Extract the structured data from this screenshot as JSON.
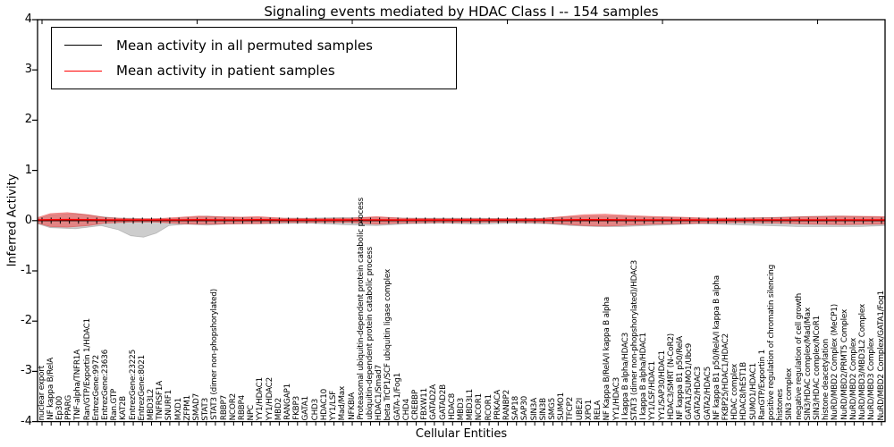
{
  "title": "Signaling events mediated by HDAC Class I -- 154 samples",
  "axes": {
    "xlabel": "Cellular Entities",
    "ylabel": "Inferred Activity",
    "yticks": [
      "4",
      "3",
      "2",
      "1",
      "0",
      "-1",
      "-2",
      "-3",
      "-4"
    ],
    "ylim": [
      -4,
      4
    ]
  },
  "legend": {
    "items": [
      {
        "label": "Mean activity in all permuted samples",
        "color": "#000000"
      },
      {
        "label": "Mean activity in patient samples",
        "color": "#ff0000"
      }
    ]
  },
  "colors": {
    "permuted_line": "#000000",
    "patient_line": "#ff0000",
    "permuted_fill": "rgba(130,130,130,0.40)",
    "patient_fill": "rgba(255,45,45,0.45)",
    "frame": "#000000"
  },
  "chart_data": {
    "type": "line",
    "title": "Signaling events mediated by HDAC Class I -- 154 samples",
    "xlabel": "Cellular Entities",
    "ylabel": "Inferred Activity",
    "ylim": [
      -4,
      4
    ],
    "grid": false,
    "legend_position": "upper left",
    "categories": [
      "nuclear export",
      "NF kappa B/RelA",
      "Ep300",
      "PPARG",
      "TNF-alpha/TNFR1A",
      "Ran/GTP/Exportin 1/HDAC1",
      "EntrezGene:9972",
      "EntrezGene:23636",
      "Ran.GTP",
      "KAT2B",
      "EntrezGene:23225",
      "EntrezGene:8021",
      "MBD3L2",
      "TNFRSF1A",
      "SNURF1",
      "MXD1",
      "ZFPM1",
      "SMAD7",
      "STAT3",
      "STAT3 (dimer non-phopshorylated)",
      "RBBP7",
      "NCOR2",
      "RBBP4",
      "NPC",
      "YY1/HDAC1",
      "YY1/HDAC2",
      "MBD2",
      "RANGAP1",
      "FKBP3",
      "GATA1",
      "CHD3",
      "HDAC10",
      "YY1/LSF",
      "Mad/Max",
      "NFKBIA",
      "Proteasomal ubiquitin-dependent protein catabolic process",
      "ubiquitin-dependent protein catabolic process",
      "HDAC1/Smad7",
      "beta TrCP1/SCF ubiquitin ligase complex",
      "GATA-1/Fog1",
      "CHD4",
      "CREBBP",
      "FBXW11",
      "GATAD2A",
      "GATAD2B",
      "HDAC8",
      "MBD3",
      "MBD3L1",
      "NCOR1",
      "RCOR1",
      "PRKACA",
      "RANBP2",
      "SAP18",
      "SAP30",
      "SIN3A",
      "SIN3B",
      "SMG5",
      "SUMO1",
      "TFCP2",
      "UBE2I",
      "XPO1",
      "RELA",
      "NF Kappa B/RelA/I kappa B alpha",
      "YY1/HDAC3",
      "I kappa B alpha/HDAC3",
      "STAT3 (dimer non-phopshorylated)/HDAC3",
      "I kappa B alpha/HDAC1",
      "YY1/LSF/HDAC1",
      "YY1/SAP30/HDAC1",
      "HDAC3/SMRT (N-CoR2)",
      "NF kappa B1 p50/RelA",
      "GATA1/SUMO1/Ubc9",
      "GATA2/HDAC3",
      "GATA2/HDAC5",
      "NF kappa B1 p50/RelA/I kappa B alpha",
      "FKBP25/HDAC1/HDAC2",
      "HDAC complex",
      "HDAC8/hEST1B",
      "SUMO1/HDAC1",
      "RanGTP/Exportin 1",
      "positive regulation of chromatin silencing",
      "histones",
      "SIN3 complex",
      "negative regulation of cell growth",
      "SIN3/HDAC complex/Mad/Max",
      "SIN3/HDAC complex/NCoR1",
      "histone deacetylation",
      "NuRD/MBD2 Complex (MeCP1)",
      "NuRD/MBD2/PRMT5 Complex",
      "NuRD/MBD2 Complex",
      "NuRD/MBD3/MBD3L2 Complex",
      "NuRD/MBD3 Complex",
      "NuRD/MBD2 Complex/GATA1/Fog1"
    ],
    "series": [
      {
        "name": "Mean activity in all permuted samples",
        "color": "#000000",
        "mean_value": 0.0
      },
      {
        "name": "Mean activity in patient samples",
        "color": "#ff0000",
        "mean_value": 0.0
      }
    ],
    "bands": {
      "note": "envelope points as [x_fraction, upper, lower] in data units around mean 0",
      "permuted": [
        [
          0.0,
          0.04,
          -0.06
        ],
        [
          0.015,
          0.12,
          -0.14
        ],
        [
          0.045,
          0.14,
          -0.16
        ],
        [
          0.075,
          0.08,
          -0.1
        ],
        [
          0.095,
          0.05,
          -0.18
        ],
        [
          0.11,
          0.05,
          -0.3
        ],
        [
          0.125,
          0.04,
          -0.33
        ],
        [
          0.14,
          0.04,
          -0.25
        ],
        [
          0.155,
          0.04,
          -0.1
        ],
        [
          0.175,
          0.06,
          -0.07
        ],
        [
          0.2,
          0.09,
          -0.09
        ],
        [
          0.22,
          0.07,
          -0.07
        ],
        [
          0.25,
          0.06,
          -0.06
        ],
        [
          0.28,
          0.05,
          -0.06
        ],
        [
          0.32,
          0.05,
          -0.05
        ],
        [
          0.36,
          0.06,
          -0.08
        ],
        [
          0.4,
          0.06,
          -0.1
        ],
        [
          0.44,
          0.05,
          -0.06
        ],
        [
          0.48,
          0.05,
          -0.05
        ],
        [
          0.52,
          0.05,
          -0.07
        ],
        [
          0.56,
          0.04,
          -0.05
        ],
        [
          0.6,
          0.05,
          -0.06
        ],
        [
          0.63,
          0.08,
          -0.1
        ],
        [
          0.66,
          0.1,
          -0.12
        ],
        [
          0.69,
          0.09,
          -0.12
        ],
        [
          0.72,
          0.07,
          -0.1
        ],
        [
          0.75,
          0.06,
          -0.08
        ],
        [
          0.78,
          0.05,
          -0.06
        ],
        [
          0.82,
          0.05,
          -0.08
        ],
        [
          0.86,
          0.06,
          -0.1
        ],
        [
          0.9,
          0.08,
          -0.12
        ],
        [
          0.94,
          0.09,
          -0.12
        ],
        [
          0.97,
          0.08,
          -0.12
        ],
        [
          1.0,
          0.07,
          -0.1
        ]
      ],
      "patient": [
        [
          0.0,
          0.06,
          -0.05
        ],
        [
          0.015,
          0.14,
          -0.12
        ],
        [
          0.035,
          0.16,
          -0.13
        ],
        [
          0.06,
          0.12,
          -0.1
        ],
        [
          0.08,
          0.06,
          -0.05
        ],
        [
          0.11,
          0.04,
          -0.03
        ],
        [
          0.14,
          0.04,
          -0.03
        ],
        [
          0.17,
          0.07,
          -0.06
        ],
        [
          0.19,
          0.09,
          -0.07
        ],
        [
          0.21,
          0.08,
          -0.07
        ],
        [
          0.24,
          0.07,
          -0.06
        ],
        [
          0.26,
          0.08,
          -0.06
        ],
        [
          0.29,
          0.05,
          -0.04
        ],
        [
          0.33,
          0.04,
          -0.04
        ],
        [
          0.37,
          0.05,
          -0.04
        ],
        [
          0.4,
          0.08,
          -0.07
        ],
        [
          0.43,
          0.05,
          -0.05
        ],
        [
          0.47,
          0.04,
          -0.04
        ],
        [
          0.51,
          0.04,
          -0.04
        ],
        [
          0.55,
          0.04,
          -0.03
        ],
        [
          0.59,
          0.04,
          -0.04
        ],
        [
          0.62,
          0.08,
          -0.07
        ],
        [
          0.645,
          0.12,
          -0.1
        ],
        [
          0.67,
          0.13,
          -0.11
        ],
        [
          0.7,
          0.1,
          -0.09
        ],
        [
          0.73,
          0.08,
          -0.07
        ],
        [
          0.76,
          0.07,
          -0.06
        ],
        [
          0.79,
          0.05,
          -0.05
        ],
        [
          0.83,
          0.05,
          -0.04
        ],
        [
          0.87,
          0.06,
          -0.05
        ],
        [
          0.91,
          0.08,
          -0.07
        ],
        [
          0.95,
          0.09,
          -0.08
        ],
        [
          1.0,
          0.08,
          -0.07
        ]
      ]
    }
  }
}
